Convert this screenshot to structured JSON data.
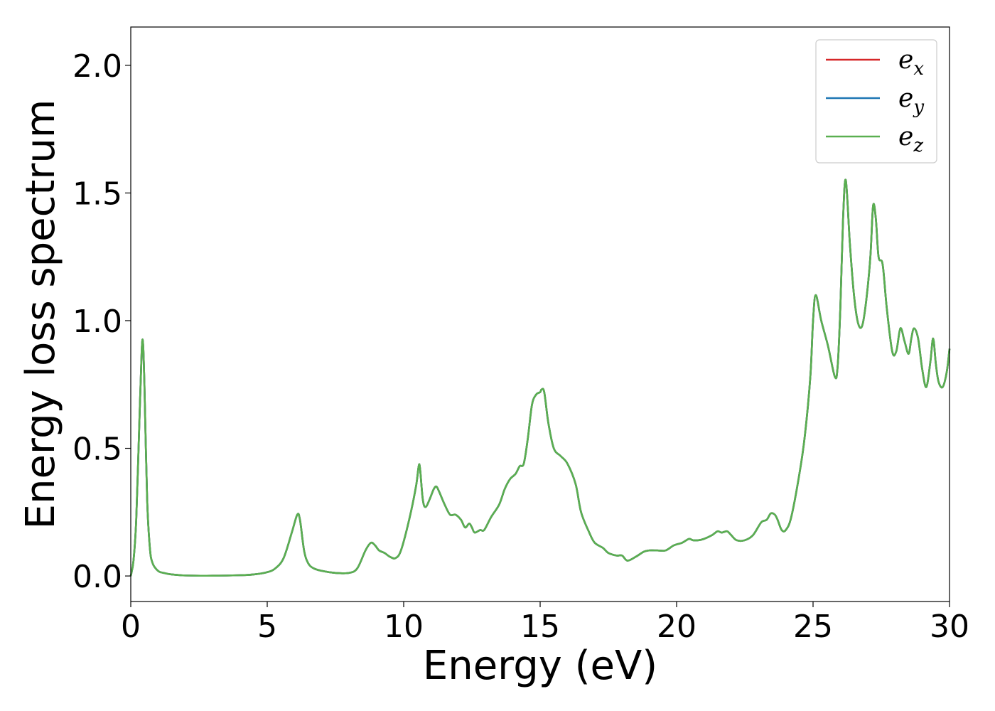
{
  "chart_data": {
    "type": "line",
    "title": "",
    "xlabel": "Energy (eV)",
    "ylabel": "Energy loss spectrum",
    "xlim": [
      0,
      30
    ],
    "ylim": [
      -0.1,
      2.15
    ],
    "xticks": [
      0,
      5,
      10,
      15,
      20,
      25,
      30
    ],
    "xtick_labels": [
      "0",
      "5",
      "10",
      "15",
      "20",
      "25",
      "30"
    ],
    "yticks": [
      0.0,
      0.5,
      1.0,
      1.5,
      2.0
    ],
    "ytick_labels": [
      "0.0",
      "0.5",
      "1.0",
      "1.5",
      "2.0"
    ],
    "grid": false,
    "legend_position": "top-right",
    "x": [
      0,
      0.1,
      0.2,
      0.3,
      0.4,
      0.45,
      0.5,
      0.6,
      0.7,
      0.8,
      1.0,
      1.2,
      1.5,
      2.0,
      3.0,
      4.0,
      4.5,
      5.0,
      5.3,
      5.6,
      5.9,
      6.1,
      6.2,
      6.35,
      6.5,
      6.7,
      7.0,
      7.5,
      8.0,
      8.3,
      8.6,
      8.8,
      8.95,
      9.1,
      9.3,
      9.5,
      9.7,
      9.9,
      10.2,
      10.45,
      10.55,
      10.6,
      10.7,
      10.8,
      10.95,
      11.1,
      11.2,
      11.3,
      11.5,
      11.7,
      11.9,
      12.1,
      12.25,
      12.4,
      12.5,
      12.6,
      12.8,
      12.95,
      13.2,
      13.5,
      13.7,
      13.9,
      14.1,
      14.25,
      14.4,
      14.55,
      14.7,
      14.85,
      15.0,
      15.05,
      15.15,
      15.3,
      15.5,
      15.75,
      16.0,
      16.3,
      16.5,
      16.8,
      17.0,
      17.3,
      17.5,
      17.8,
      18.0,
      18.2,
      18.5,
      18.8,
      19.0,
      19.3,
      19.6,
      19.9,
      20.2,
      20.45,
      20.6,
      20.8,
      21.0,
      21.3,
      21.5,
      21.65,
      21.85,
      22.0,
      22.2,
      22.5,
      22.8,
      23.1,
      23.3,
      23.45,
      23.6,
      23.7,
      23.85,
      24.0,
      24.2,
      24.5,
      24.7,
      24.9,
      25.0,
      25.1,
      25.3,
      25.55,
      25.8,
      25.9,
      26.0,
      26.1,
      26.2,
      26.35,
      26.5,
      26.65,
      26.8,
      26.95,
      27.1,
      27.2,
      27.3,
      27.4,
      27.55,
      27.7,
      27.9,
      28.05,
      28.2,
      28.35,
      28.5,
      28.6,
      28.7,
      28.85,
      29.0,
      29.15,
      29.3,
      29.4,
      29.5,
      29.6,
      29.75,
      29.9,
      30.0
    ],
    "series": [
      {
        "name": "e_x",
        "color": "#d62728",
        "values": [
          0.0,
          0.06,
          0.22,
          0.55,
          0.88,
          0.91,
          0.75,
          0.3,
          0.11,
          0.05,
          0.02,
          0.012,
          0.006,
          0.002,
          0.001,
          0.003,
          0.006,
          0.015,
          0.03,
          0.07,
          0.17,
          0.24,
          0.22,
          0.1,
          0.05,
          0.03,
          0.02,
          0.012,
          0.012,
          0.03,
          0.1,
          0.13,
          0.12,
          0.1,
          0.09,
          0.075,
          0.07,
          0.1,
          0.22,
          0.35,
          0.43,
          0.42,
          0.3,
          0.27,
          0.3,
          0.34,
          0.35,
          0.33,
          0.28,
          0.24,
          0.24,
          0.22,
          0.19,
          0.205,
          0.19,
          0.17,
          0.18,
          0.18,
          0.23,
          0.28,
          0.34,
          0.38,
          0.4,
          0.43,
          0.44,
          0.54,
          0.67,
          0.71,
          0.72,
          0.73,
          0.72,
          0.6,
          0.5,
          0.47,
          0.44,
          0.36,
          0.25,
          0.17,
          0.13,
          0.11,
          0.09,
          0.08,
          0.08,
          0.06,
          0.075,
          0.095,
          0.1,
          0.1,
          0.1,
          0.12,
          0.13,
          0.145,
          0.14,
          0.14,
          0.145,
          0.16,
          0.175,
          0.17,
          0.175,
          0.16,
          0.14,
          0.14,
          0.16,
          0.21,
          0.22,
          0.245,
          0.24,
          0.22,
          0.18,
          0.18,
          0.23,
          0.4,
          0.55,
          0.78,
          1.0,
          1.1,
          1.0,
          0.9,
          0.78,
          0.82,
          1.05,
          1.4,
          1.55,
          1.3,
          1.1,
          0.99,
          0.98,
          1.08,
          1.25,
          1.45,
          1.4,
          1.25,
          1.22,
          1.05,
          0.88,
          0.88,
          0.97,
          0.92,
          0.87,
          0.93,
          0.97,
          0.93,
          0.81,
          0.74,
          0.84,
          0.93,
          0.83,
          0.76,
          0.74,
          0.8,
          0.89
        ]
      },
      {
        "name": "e_y",
        "color": "#1f77b4",
        "values": [
          0.0,
          0.06,
          0.22,
          0.55,
          0.88,
          0.91,
          0.75,
          0.3,
          0.11,
          0.05,
          0.02,
          0.012,
          0.006,
          0.002,
          0.001,
          0.003,
          0.006,
          0.015,
          0.03,
          0.07,
          0.17,
          0.24,
          0.22,
          0.1,
          0.05,
          0.03,
          0.02,
          0.012,
          0.012,
          0.03,
          0.1,
          0.13,
          0.12,
          0.1,
          0.09,
          0.075,
          0.07,
          0.1,
          0.22,
          0.35,
          0.43,
          0.42,
          0.3,
          0.27,
          0.3,
          0.34,
          0.35,
          0.33,
          0.28,
          0.24,
          0.24,
          0.22,
          0.19,
          0.205,
          0.19,
          0.17,
          0.18,
          0.18,
          0.23,
          0.28,
          0.34,
          0.38,
          0.4,
          0.43,
          0.44,
          0.54,
          0.67,
          0.71,
          0.72,
          0.73,
          0.72,
          0.6,
          0.5,
          0.47,
          0.44,
          0.36,
          0.25,
          0.17,
          0.13,
          0.11,
          0.09,
          0.08,
          0.08,
          0.06,
          0.075,
          0.095,
          0.1,
          0.1,
          0.1,
          0.12,
          0.13,
          0.145,
          0.14,
          0.14,
          0.145,
          0.16,
          0.175,
          0.17,
          0.175,
          0.16,
          0.14,
          0.14,
          0.16,
          0.21,
          0.22,
          0.245,
          0.24,
          0.22,
          0.18,
          0.18,
          0.23,
          0.4,
          0.55,
          0.78,
          1.0,
          1.1,
          1.0,
          0.9,
          0.78,
          0.82,
          1.05,
          1.4,
          1.55,
          1.3,
          1.1,
          0.99,
          0.98,
          1.08,
          1.25,
          1.45,
          1.4,
          1.25,
          1.22,
          1.05,
          0.88,
          0.88,
          0.97,
          0.92,
          0.87,
          0.93,
          0.97,
          0.93,
          0.81,
          0.74,
          0.84,
          0.93,
          0.83,
          0.76,
          0.74,
          0.8,
          0.89
        ]
      },
      {
        "name": "e_z",
        "color": "#5aaf50",
        "values": [
          0.0,
          0.06,
          0.22,
          0.55,
          0.88,
          0.91,
          0.75,
          0.3,
          0.11,
          0.05,
          0.02,
          0.012,
          0.006,
          0.002,
          0.001,
          0.003,
          0.006,
          0.015,
          0.03,
          0.07,
          0.17,
          0.24,
          0.22,
          0.1,
          0.05,
          0.03,
          0.02,
          0.012,
          0.012,
          0.03,
          0.1,
          0.13,
          0.12,
          0.1,
          0.09,
          0.075,
          0.07,
          0.1,
          0.22,
          0.35,
          0.43,
          0.42,
          0.3,
          0.27,
          0.3,
          0.34,
          0.35,
          0.33,
          0.28,
          0.24,
          0.24,
          0.22,
          0.19,
          0.205,
          0.19,
          0.17,
          0.18,
          0.18,
          0.23,
          0.28,
          0.34,
          0.38,
          0.4,
          0.43,
          0.44,
          0.54,
          0.67,
          0.71,
          0.72,
          0.73,
          0.72,
          0.6,
          0.5,
          0.47,
          0.44,
          0.36,
          0.25,
          0.17,
          0.13,
          0.11,
          0.09,
          0.08,
          0.08,
          0.06,
          0.075,
          0.095,
          0.1,
          0.1,
          0.1,
          0.12,
          0.13,
          0.145,
          0.14,
          0.14,
          0.145,
          0.16,
          0.175,
          0.17,
          0.175,
          0.16,
          0.14,
          0.14,
          0.16,
          0.21,
          0.22,
          0.245,
          0.24,
          0.22,
          0.18,
          0.18,
          0.23,
          0.4,
          0.55,
          0.78,
          1.0,
          1.1,
          1.0,
          0.9,
          0.78,
          0.82,
          1.05,
          1.4,
          1.55,
          1.3,
          1.1,
          0.99,
          0.98,
          1.08,
          1.25,
          1.45,
          1.4,
          1.25,
          1.22,
          1.05,
          0.88,
          0.88,
          0.97,
          0.92,
          0.87,
          0.93,
          0.97,
          0.93,
          0.81,
          0.74,
          0.84,
          0.93,
          0.83,
          0.76,
          0.74,
          0.8,
          0.89
        ]
      }
    ],
    "legend": [
      {
        "base": "e",
        "sub": "x",
        "color": "#d62728"
      },
      {
        "base": "e",
        "sub": "y",
        "color": "#1f77b4"
      },
      {
        "base": "e",
        "sub": "z",
        "color": "#5aaf50"
      }
    ]
  }
}
